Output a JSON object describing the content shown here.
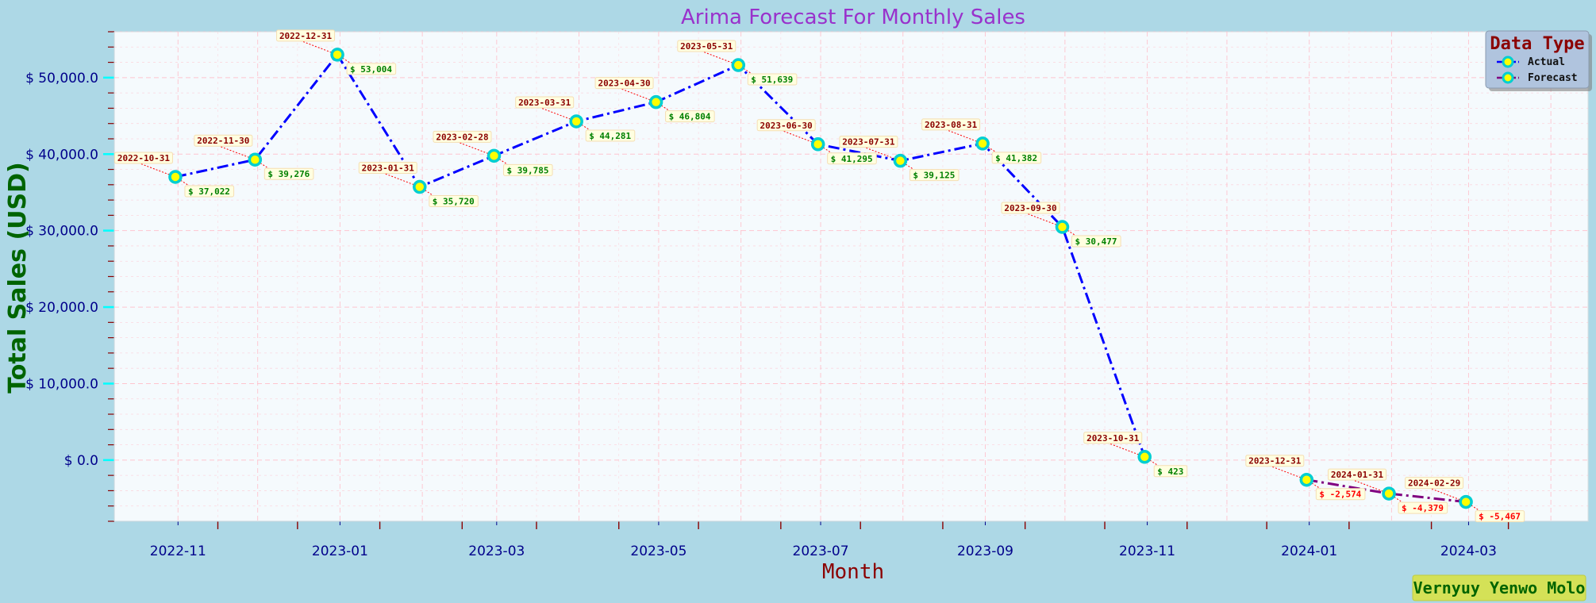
{
  "chart_data": {
    "type": "line",
    "title": "Arima Forecast For Monthly Sales",
    "xlabel": "Month",
    "ylabel": "Total Sales (USD)",
    "ylim": [
      -8000,
      56000
    ],
    "yticks": [
      0,
      10000,
      20000,
      30000,
      40000,
      50000
    ],
    "ytick_labels": [
      "$ 0.0",
      "$ 10,000.0",
      "$ 20,000.0",
      "$ 30,000.0",
      "$ 40,000.0",
      "$ 50,000.0"
    ],
    "xlim": [
      "2022-10-08",
      "2024-04-15"
    ],
    "xticks": [
      "2022-11-01",
      "2023-01-01",
      "2023-03-01",
      "2023-05-01",
      "2023-07-01",
      "2023-09-01",
      "2023-11-01",
      "2024-01-01",
      "2024-03-01"
    ],
    "xtick_labels": [
      "2022-11",
      "2023-01",
      "2023-03",
      "2023-05",
      "2023-07",
      "2023-09",
      "2023-11",
      "2024-01",
      "2024-03"
    ],
    "grid": true,
    "legend": {
      "title": "Data Type",
      "placement": "top-right",
      "entries": [
        "Actual",
        "Forecast"
      ]
    },
    "series": [
      {
        "name": "Actual",
        "color": "#0000ff",
        "points": [
          {
            "x": "2022-10-31",
            "y": 37022,
            "date_label": "2022-10-31",
            "value_label": "$ 37,022"
          },
          {
            "x": "2022-11-30",
            "y": 39276,
            "date_label": "2022-11-30",
            "value_label": "$ 39,276"
          },
          {
            "x": "2022-12-31",
            "y": 53004,
            "date_label": "2022-12-31",
            "value_label": "$ 53,004"
          },
          {
            "x": "2023-01-31",
            "y": 35720,
            "date_label": "2023-01-31",
            "value_label": "$ 35,720"
          },
          {
            "x": "2023-02-28",
            "y": 39785,
            "date_label": "2023-02-28",
            "value_label": "$ 39,785"
          },
          {
            "x": "2023-03-31",
            "y": 44281,
            "date_label": "2023-03-31",
            "value_label": "$ 44,281"
          },
          {
            "x": "2023-04-30",
            "y": 46804,
            "date_label": "2023-04-30",
            "value_label": "$ 46,804"
          },
          {
            "x": "2023-05-31",
            "y": 51639,
            "date_label": "2023-05-31",
            "value_label": "$ 51,639"
          },
          {
            "x": "2023-06-30",
            "y": 41295,
            "date_label": "2023-06-30",
            "value_label": "$ 41,295"
          },
          {
            "x": "2023-07-31",
            "y": 39125,
            "date_label": "2023-07-31",
            "value_label": "$ 39,125"
          },
          {
            "x": "2023-08-31",
            "y": 41382,
            "date_label": "2023-08-31",
            "value_label": "$ 41,382"
          },
          {
            "x": "2023-09-30",
            "y": 30477,
            "date_label": "2023-09-30",
            "value_label": "$ 30,477"
          },
          {
            "x": "2023-10-31",
            "y": 423,
            "date_label": "2023-10-31",
            "value_label": "$ 423"
          }
        ]
      },
      {
        "name": "Forecast",
        "color": "#800080",
        "points": [
          {
            "x": "2023-12-31",
            "y": -2574,
            "date_label": "2023-12-31",
            "value_label": "$ -2,574"
          },
          {
            "x": "2024-01-31",
            "y": -4379,
            "date_label": "2024-01-31",
            "value_label": "$ -4,379"
          },
          {
            "x": "2024-02-29",
            "y": -5467,
            "date_label": "2024-02-29",
            "value_label": "$ -5,467"
          }
        ]
      }
    ]
  },
  "signature": "Vernyuy Yenwo Molo",
  "colors": {
    "background": "#add8e6",
    "plot_background": "#f5fafd",
    "grid": "#ffc0cb",
    "marker_fill": "#ffff00",
    "marker_edge": "#00ced1",
    "actual_value_text": "#008000",
    "forecast_value_text": "#ff0000",
    "legend_background": "#b0c4de",
    "signature_background": "#d4e157"
  }
}
